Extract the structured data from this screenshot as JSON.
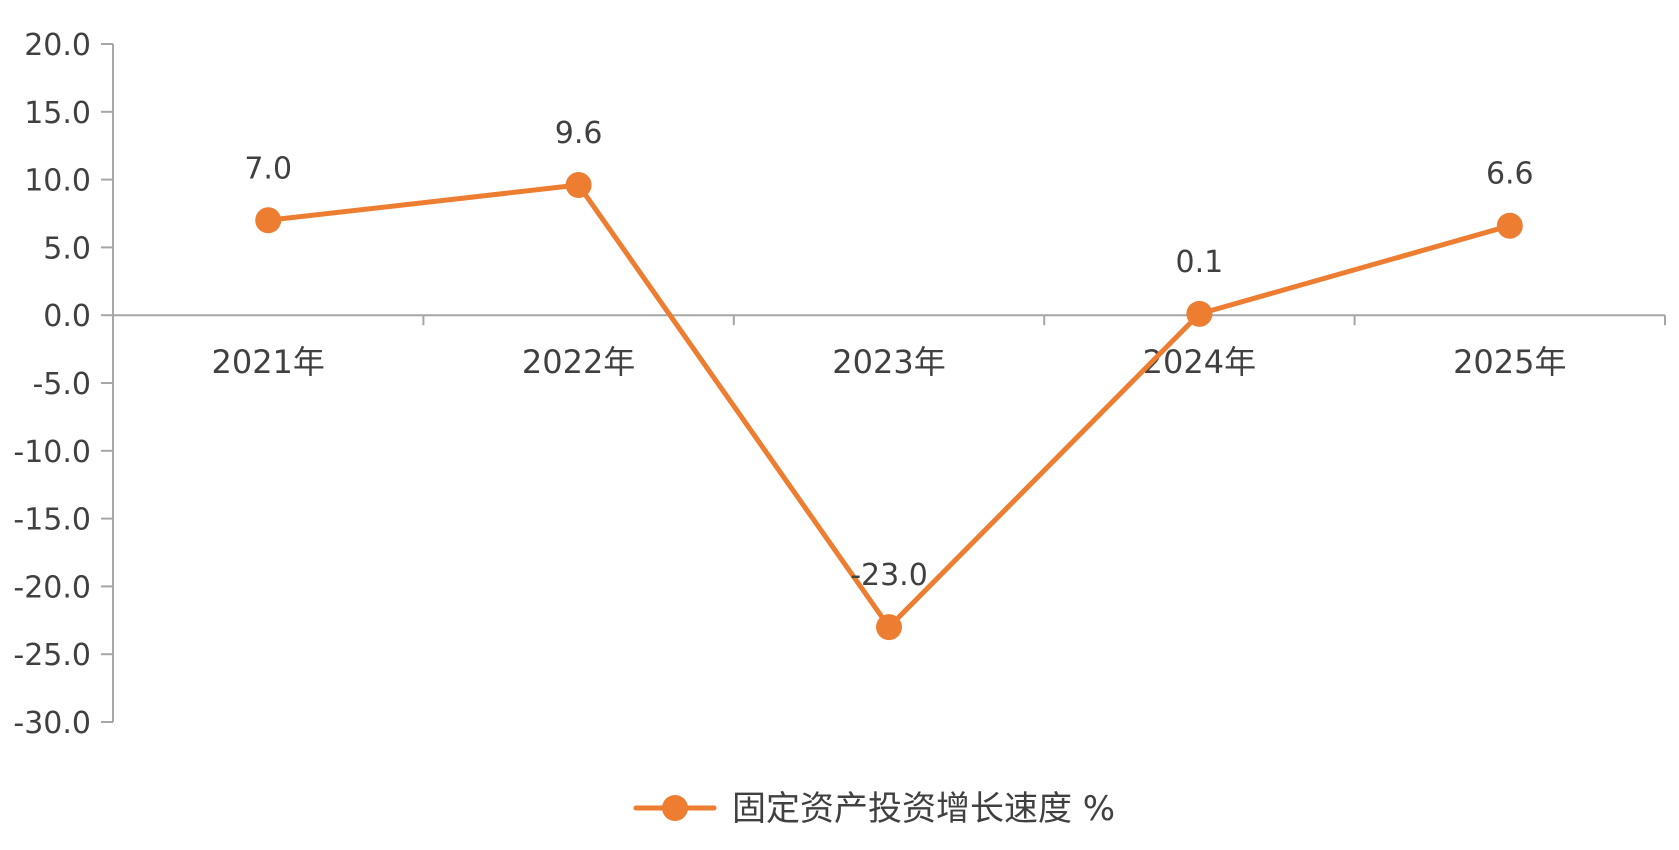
{
  "chart_data": {
    "type": "line",
    "title": "",
    "xlabel": "",
    "ylabel": "",
    "categories": [
      "2021年",
      "2022年",
      "2023年",
      "2024年",
      "2025年"
    ],
    "series": [
      {
        "name": "固定资产投资增长速度 %",
        "values": [
          7.0,
          9.6,
          -23.0,
          0.1,
          6.6
        ],
        "labels": [
          "7.0",
          "9.6",
          "-23.0",
          "0.1",
          "6.6"
        ],
        "color": "#ED7D31"
      }
    ],
    "ylim": [
      -30,
      20
    ],
    "ytick_step": 5,
    "yticks": [
      "20.0",
      "15.0",
      "10.0",
      "5.0",
      "0.0",
      "-5.0",
      "-10.0",
      "-15.0",
      "-20.0",
      "-25.0",
      "-30.0"
    ],
    "grid": false,
    "legend": "bottom-center",
    "axis_color": "#A6A6A6",
    "text_color": "#404040"
  }
}
